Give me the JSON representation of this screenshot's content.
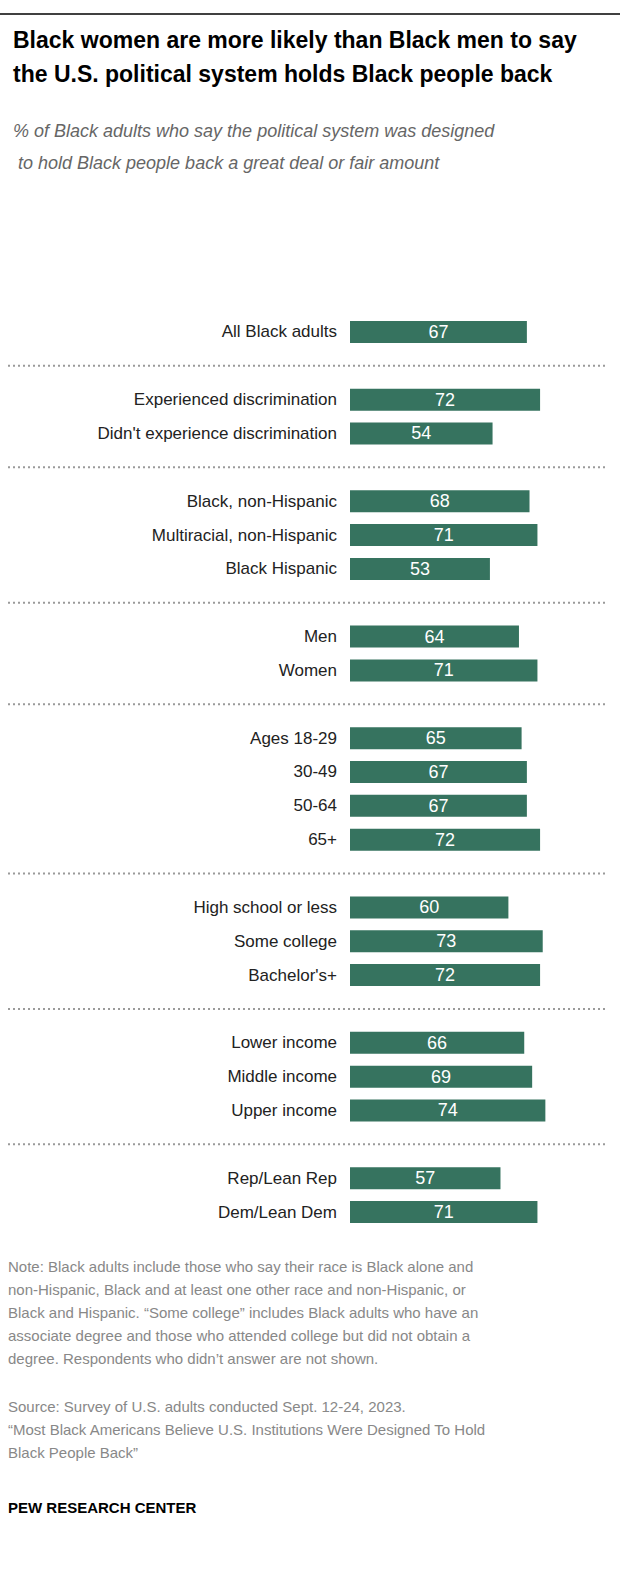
{
  "chart_data": {
    "type": "bar",
    "orientation": "horizontal",
    "title": "Black women are more likely than Black men to say the U.S. political system holds Black people back",
    "subtitle": "% of Black adults who say the political system was designed to hold Black people back a great deal or fair amount",
    "categories": [
      "All Black adults",
      null,
      "Experienced discrimination",
      "Didn't experience discrimination",
      null,
      "Black, non-Hispanic",
      "Multiracial, non-Hispanic",
      "Black Hispanic",
      null,
      "Men",
      "Women",
      null,
      "Ages 18-29",
      "30-49",
      "50-64",
      "65+",
      null,
      "High school or less",
      "Some college",
      "Bachelor's+",
      null,
      "Lower income",
      "Middle income",
      "Upper income",
      null,
      "Rep/Lean Rep",
      "Dem/Lean Dem"
    ],
    "values": [
      67,
      null,
      72,
      54,
      null,
      68,
      71,
      53,
      null,
      64,
      71,
      null,
      65,
      67,
      67,
      72,
      null,
      60,
      73,
      72,
      null,
      66,
      69,
      74,
      null,
      57,
      71
    ],
    "color": "#36735f",
    "xlim": [
      0,
      100
    ],
    "data_labels": true,
    "tick_labels": "y",
    "grid": false,
    "note": "Note: Black adults include those who say their race is Black alone and non-Hispanic, Black and at least one other race and non-Hispanic, or Black and Hispanic. “Some college” includes Black adults who have an associate degree and those who attended college but did not obtain a degree. Respondents who didn’t answer are not shown.",
    "source": "Source: Survey of U.S. adults conducted Sept. 12-24, 2023.\n“Most Black Americans Believe U.S. Institutions Were Designed To Hold Black People Back”",
    "credit": "PEW RESEARCH CENTER"
  }
}
